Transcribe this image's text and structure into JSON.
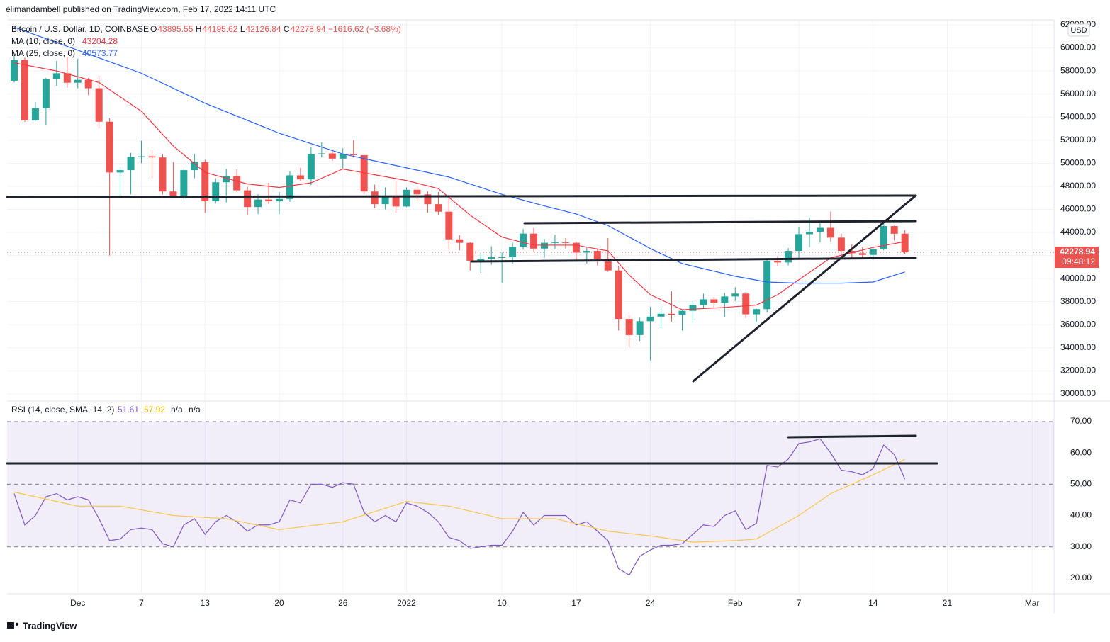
{
  "chart_data": {
    "type": "candlestick",
    "publisher": "elimandambell published on TradingView.com, Feb 17, 2022 14:11 UTC",
    "title": "Bitcoin / U.S. Dollar, 1D, COINBASE",
    "ohlc_labels": [
      "O",
      "H",
      "L",
      "C"
    ],
    "change": "−1616.62 (−3.68%)",
    "currency": "USD",
    "countdown": "09:48:12",
    "brand": "TradingView",
    "up_color": "#26a69a",
    "down_color": "#ef5350",
    "categories": [
      "2021-11-25",
      "2021-11-26",
      "2021-11-27",
      "2021-11-28",
      "2021-11-29",
      "2021-11-30",
      "2021-12-01",
      "2021-12-02",
      "2021-12-03",
      "2021-12-04",
      "2021-12-05",
      "2021-12-06",
      "2021-12-07",
      "2021-12-08",
      "2021-12-09",
      "2021-12-10",
      "2021-12-11",
      "2021-12-12",
      "2021-12-13",
      "2021-12-14",
      "2021-12-15",
      "2021-12-16",
      "2021-12-17",
      "2021-12-18",
      "2021-12-19",
      "2021-12-20",
      "2021-12-21",
      "2021-12-22",
      "2021-12-23",
      "2021-12-24",
      "2021-12-25",
      "2021-12-26",
      "2021-12-27",
      "2021-12-28",
      "2021-12-29",
      "2021-12-30",
      "2021-12-31",
      "2022-01-01",
      "2022-01-02",
      "2022-01-03",
      "2022-01-04",
      "2022-01-05",
      "2022-01-06",
      "2022-01-07",
      "2022-01-08",
      "2022-01-09",
      "2022-01-10",
      "2022-01-11",
      "2022-01-12",
      "2022-01-13",
      "2022-01-14",
      "2022-01-15",
      "2022-01-16",
      "2022-01-17",
      "2022-01-18",
      "2022-01-19",
      "2022-01-20",
      "2022-01-21",
      "2022-01-22",
      "2022-01-23",
      "2022-01-24",
      "2022-01-25",
      "2022-01-26",
      "2022-01-27",
      "2022-01-28",
      "2022-01-29",
      "2022-01-30",
      "2022-01-31",
      "2022-02-01",
      "2022-02-02",
      "2022-02-03",
      "2022-02-04",
      "2022-02-05",
      "2022-02-06",
      "2022-02-07",
      "2022-02-08",
      "2022-02-09",
      "2022-02-10",
      "2022-02-11",
      "2022-02-12",
      "2022-02-13",
      "2022-02-14",
      "2022-02-15",
      "2022-02-16",
      "2022-02-17"
    ],
    "open": [
      57150,
      58960,
      53720,
      54760,
      57290,
      57800,
      56980,
      57230,
      56500,
      53600,
      49200,
      49400,
      50550,
      50600,
      50500,
      47550,
      47150,
      49400,
      50100,
      46700,
      48350,
      48900,
      47650,
      46200,
      46850,
      46700,
      46900,
      48950,
      48600,
      50800,
      50850,
      50400,
      50800,
      50700,
      47550,
      46450,
      47100,
      46250,
      47700,
      47300,
      46450,
      45800,
      43400,
      43100,
      41550,
      41700,
      41850,
      41850,
      42750,
      43900,
      42600,
      43100,
      43150,
      43100,
      42250,
      42400,
      41700,
      40700,
      36500,
      35100,
      36300,
      36700,
      36950,
      36850,
      37200,
      37700,
      38200,
      37900,
      38450,
      38700,
      36900,
      37350,
      41550,
      41400,
      42400,
      43850,
      44050,
      44400,
      43550,
      42400,
      42200,
      42050,
      42550,
      44550,
      43895.55
    ],
    "high": [
      59400,
      59150,
      55300,
      57400,
      58870,
      59250,
      59050,
      57400,
      57600,
      53900,
      49700,
      50900,
      51950,
      51200,
      50800,
      50100,
      49500,
      50800,
      50300,
      48700,
      49500,
      49450,
      47950,
      47300,
      48300,
      47500,
      49300,
      49600,
      51400,
      51800,
      51200,
      51300,
      52000,
      50700,
      48150,
      47900,
      48500,
      47900,
      47950,
      47550,
      47500,
      47050,
      43750,
      43150,
      42300,
      42800,
      42250,
      43100,
      44300,
      44400,
      43450,
      43800,
      43500,
      43200,
      42700,
      42600,
      43500,
      41100,
      36800,
      36600,
      37550,
      37550,
      38900,
      37250,
      38050,
      38700,
      38400,
      38750,
      39250,
      38850,
      37400,
      41750,
      41950,
      42650,
      44500,
      45300,
      44800,
      45800,
      43900,
      43000,
      42700,
      42800,
      44750,
      44600,
      44195.62
    ],
    "low": [
      57000,
      53600,
      53650,
      53330,
      56700,
      56550,
      56500,
      55900,
      53000,
      42000,
      47100,
      47300,
      50000,
      48700,
      47300,
      47300,
      46900,
      48700,
      45700,
      46500,
      46600,
      47500,
      45500,
      45600,
      46450,
      45600,
      46650,
      48450,
      48100,
      50500,
      50200,
      49500,
      50500,
      47300,
      46100,
      46000,
      45700,
      46200,
      46700,
      45700,
      45500,
      42500,
      42450,
      40700,
      40500,
      41200,
      39650,
      41300,
      42500,
      42300,
      41800,
      42600,
      42600,
      41600,
      41300,
      41150,
      40600,
      35500,
      34050,
      34600,
      32900,
      35700,
      36250,
      35500,
      36200,
      37400,
      37400,
      36650,
      38050,
      36600,
      36250,
      37050,
      41050,
      41150,
      41700,
      42700,
      43150,
      43200,
      41900,
      41750,
      41800,
      41600,
      42450,
      43300,
      42126.84
    ],
    "close": [
      58960,
      53720,
      54760,
      57290,
      57800,
      56980,
      57230,
      56500,
      53600,
      49200,
      49400,
      50550,
      50600,
      50500,
      47550,
      47150,
      49400,
      50100,
      46700,
      48350,
      48900,
      47650,
      46200,
      46850,
      46700,
      46900,
      48950,
      48600,
      50800,
      50850,
      50400,
      50800,
      50700,
      47550,
      46450,
      47100,
      46250,
      47700,
      47300,
      46450,
      45800,
      43400,
      43100,
      41550,
      41700,
      41850,
      41850,
      42750,
      43900,
      42600,
      43100,
      43150,
      43100,
      42250,
      42400,
      41700,
      40700,
      36500,
      35100,
      36300,
      36700,
      36950,
      36850,
      37200,
      37700,
      38200,
      37900,
      38450,
      38700,
      36900,
      37350,
      41550,
      41400,
      42400,
      43850,
      44050,
      44400,
      43550,
      42400,
      42200,
      42050,
      42550,
      44550,
      43890,
      42278.94
    ],
    "ma_series": [
      {
        "name": "MA (10, close, 0)",
        "color": "#f23645",
        "x": [
          "2021-11-25",
          "2021-11-29",
          "2021-12-03",
          "2021-12-07",
          "2021-12-10",
          "2021-12-13",
          "2021-12-17",
          "2021-12-20",
          "2021-12-23",
          "2021-12-26",
          "2021-12-29",
          "2022-01-01",
          "2022-01-04",
          "2022-01-07",
          "2022-01-10",
          "2022-01-13",
          "2022-01-17",
          "2022-01-20",
          "2022-01-22",
          "2022-01-24",
          "2022-01-27",
          "2022-01-31",
          "2022-02-03",
          "2022-02-05",
          "2022-02-07",
          "2022-02-10",
          "2022-02-14",
          "2022-02-17"
        ],
        "values": [
          58700,
          58000,
          57000,
          54500,
          51500,
          49200,
          48200,
          47900,
          48300,
          49500,
          49000,
          48500,
          47800,
          45500,
          43600,
          42900,
          42900,
          42400,
          40300,
          38600,
          37300,
          37500,
          37700,
          38600,
          39900,
          41800,
          42700,
          43204.28
        ]
      },
      {
        "name": "MA (25, close, 0)",
        "color": "#2962ff",
        "x": [
          "2021-11-25",
          "2021-12-01",
          "2021-12-07",
          "2021-12-13",
          "2021-12-20",
          "2021-12-26",
          "2022-01-01",
          "2022-01-05",
          "2022-01-10",
          "2022-01-14",
          "2022-01-17",
          "2022-01-20",
          "2022-01-24",
          "2022-01-27",
          "2022-02-01",
          "2022-02-04",
          "2022-02-07",
          "2022-02-11",
          "2022-02-14",
          "2022-02-17"
        ],
        "values": [
          61800,
          59800,
          57800,
          55200,
          52600,
          50800,
          49600,
          48800,
          47300,
          46300,
          45600,
          44600,
          42600,
          41300,
          40200,
          39700,
          39600,
          39600,
          39700,
          40573.77
        ]
      }
    ],
    "ylim": [
      29380,
      62430
    ],
    "yticks": [
      {
        "value": 30000,
        "label": "30000.00"
      },
      {
        "value": 32000,
        "label": "32000.00"
      },
      {
        "value": 34000,
        "label": "34000.00"
      },
      {
        "value": 36000,
        "label": "36000.00"
      },
      {
        "value": 38000,
        "label": "38000.00"
      },
      {
        "value": 40000,
        "label": "40000.00"
      },
      {
        "value": 42000,
        "label": "42000.00"
      },
      {
        "value": 44000,
        "label": "44000.00"
      },
      {
        "value": 46000,
        "label": "46000.00"
      },
      {
        "value": 48000,
        "label": "48000.00"
      },
      {
        "value": 50000,
        "label": "50000.00"
      },
      {
        "value": 52000,
        "label": "52000.00"
      },
      {
        "value": 54000,
        "label": "54000.00"
      },
      {
        "value": 56000,
        "label": "56000.00"
      },
      {
        "value": 58000,
        "label": "58000.00"
      },
      {
        "value": 60000,
        "label": "60000.00"
      },
      {
        "value": 62000,
        "label": "62000.00"
      }
    ],
    "xticks": [
      {
        "value": "2021-12-01",
        "label": "Dec"
      },
      {
        "value": "2021-12-07",
        "label": "7"
      },
      {
        "value": "2021-12-13",
        "label": "13"
      },
      {
        "value": "2021-12-20",
        "label": "20"
      },
      {
        "value": "2021-12-26",
        "label": "26"
      },
      {
        "value": "2022-01-01",
        "label": "2022"
      },
      {
        "value": "2022-01-10",
        "label": "10"
      },
      {
        "value": "2022-01-17",
        "label": "17"
      },
      {
        "value": "2022-01-24",
        "label": "24"
      },
      {
        "value": "2022-02-01",
        "label": "Feb"
      },
      {
        "value": "2022-02-07",
        "label": "7"
      },
      {
        "value": "2022-02-14",
        "label": "14"
      },
      {
        "value": "2022-02-21",
        "label": "21"
      },
      {
        "value": "2022-03-01",
        "label": "Mar"
      }
    ],
    "grid": true,
    "rsi": {
      "name": "RSI (14, close, SMA, 14, 2)",
      "color": "#7e57c2",
      "values": [
        47,
        37,
        40,
        46,
        47,
        45,
        46,
        45,
        39,
        32,
        32.5,
        35.5,
        36,
        35.5,
        31,
        30,
        37,
        39,
        34,
        38,
        40,
        38,
        35,
        37,
        37,
        38,
        45,
        44,
        50,
        50,
        49,
        50.5,
        50,
        41,
        38,
        40,
        38,
        44,
        43,
        41,
        38,
        33,
        32,
        29.5,
        30,
        30.5,
        30.5,
        35,
        41,
        37,
        40,
        40,
        40,
        37,
        38,
        35,
        32,
        23,
        21,
        27,
        29,
        30.5,
        30.5,
        31,
        34,
        37,
        36.5,
        40,
        41.5,
        35.5,
        37.5,
        56,
        55.5,
        58,
        63,
        63.5,
        64.5,
        60,
        54.5,
        54,
        53,
        55,
        62.5,
        59.5,
        51.61
      ],
      "ma": {
        "color": "#f9c74f",
        "x": [
          "2021-11-25",
          "2021-12-01",
          "2021-12-05",
          "2021-12-10",
          "2021-12-15",
          "2021-12-20",
          "2021-12-26",
          "2022-01-01",
          "2022-01-05",
          "2022-01-10",
          "2022-01-15",
          "2022-01-20",
          "2022-01-24",
          "2022-01-28",
          "2022-02-01",
          "2022-02-03",
          "2022-02-07",
          "2022-02-10",
          "2022-02-14",
          "2022-02-17"
        ],
        "values": [
          47.5,
          43,
          43,
          40,
          39,
          35.5,
          38,
          44.5,
          43,
          39,
          39,
          35,
          33.5,
          31.5,
          32,
          32.5,
          40,
          47,
          53,
          57.92
        ]
      },
      "extra": [
        "n/a",
        "n/a"
      ],
      "levels": [
        30,
        50,
        70
      ],
      "ylim": [
        15,
        76.1
      ],
      "yticks": [
        {
          "value": 20,
          "label": "20.00"
        },
        {
          "value": 30,
          "label": "30.00"
        },
        {
          "value": 40,
          "label": "40.00"
        },
        {
          "value": 50,
          "label": "50.00"
        },
        {
          "value": 60,
          "label": "60.00"
        },
        {
          "value": 70,
          "label": "70.00"
        }
      ]
    }
  }
}
